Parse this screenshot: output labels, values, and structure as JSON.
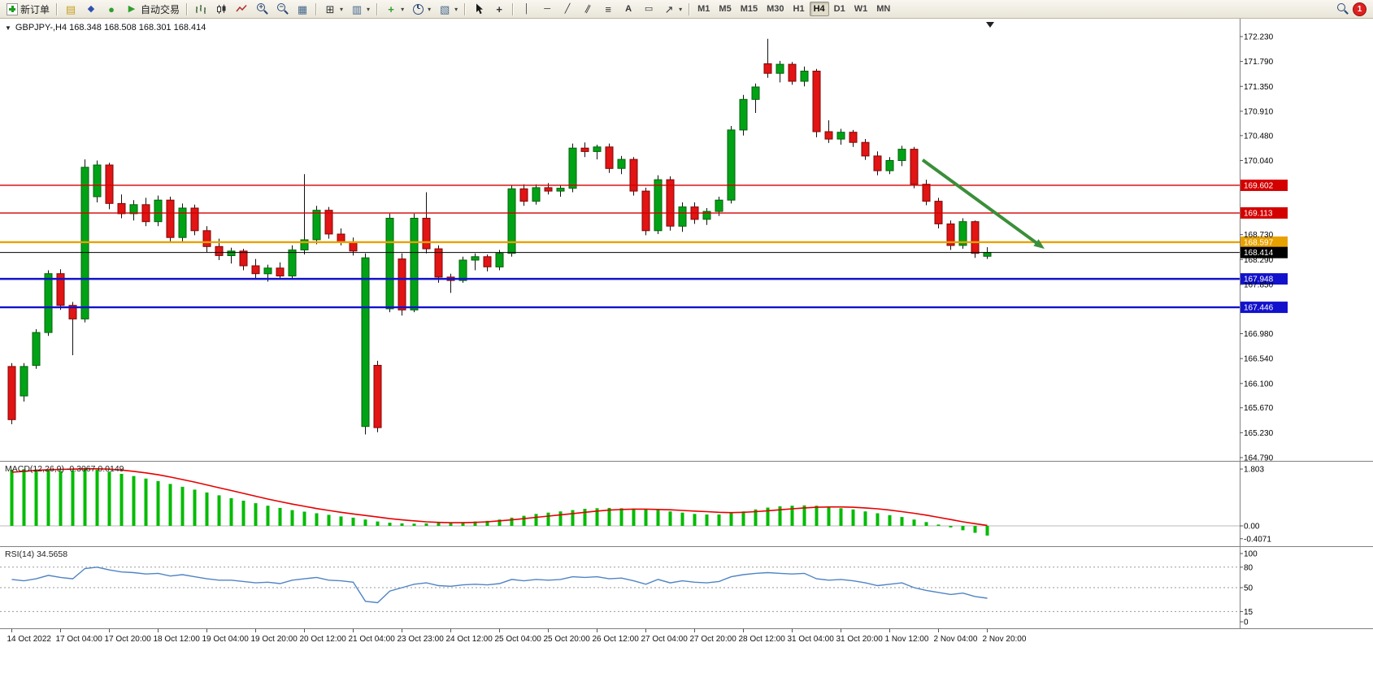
{
  "toolbar": {
    "new_order": "新订单",
    "autotrading": "自动交易",
    "timeframes": [
      "M1",
      "M5",
      "M15",
      "M30",
      "H1",
      "H4",
      "D1",
      "W1",
      "MN"
    ],
    "active_timeframe": "H4",
    "notification_count": "1"
  },
  "icons": {
    "collapse": "▼",
    "dropdown": "▾",
    "depth_of_market": "▤",
    "metaeditor": "◆",
    "mql5": "●",
    "play": "▶",
    "tile_windows": "▦",
    "new_chart": "⊞",
    "profiles": "▥",
    "templates": "▧",
    "indicators_plus": "+",
    "zoom_plus": "+",
    "zoom_minus": "−",
    "crosshair": "+",
    "vertical_line": "│",
    "horizontal_line": "─",
    "trend_line": "╱",
    "channel": "∥",
    "fibonacci": "≡",
    "text_tool": "A",
    "text_label": "▭",
    "arrows_tool": "↗"
  },
  "chart": {
    "title_line": "GBPJPY-,H4  168.348 168.508 168.301 168.414",
    "macd_header": "MACD(12,26,9) -0.3067 0.0149",
    "rsi_header": "RSI(14) 34.5658",
    "price_axis_labels": [
      "172.230",
      "171.790",
      "171.350",
      "170.910",
      "170.480",
      "170.040",
      "168.730",
      "168.290",
      "167.850",
      "166.980",
      "166.540",
      "166.100",
      "165.670",
      "165.230",
      "164.790"
    ],
    "macd_axis_labels": [
      "1.803",
      "0.00",
      "-0.4071"
    ],
    "rsi_axis_labels": [
      "100",
      "80",
      "50",
      "15",
      "0"
    ]
  },
  "chart_data": {
    "type": "candlestick",
    "symbol": "GBPJPY-",
    "timeframe": "H4",
    "ohlc_current": [
      168.348,
      168.508,
      168.301,
      168.414
    ],
    "y_range": [
      164.79,
      172.23
    ],
    "time_label_step": 4,
    "time_labels": [
      "14 Oct 2022",
      "17 Oct 04:00",
      "17 Oct 20:00",
      "18 Oct 12:00",
      "19 Oct 04:00",
      "19 Oct 20:00",
      "20 Oct 12:00",
      "21 Oct 04:00",
      "23 Oct 23:00",
      "24 Oct 12:00",
      "25 Oct 04:00",
      "25 Oct 20:00",
      "26 Oct 12:00",
      "27 Oct 04:00",
      "27 Oct 20:00",
      "28 Oct 12:00",
      "31 Oct 04:00",
      "31 Oct 20:00",
      "1 Nov 12:00",
      "2 Nov 04:00",
      "2 Nov 20:00"
    ],
    "candles": [
      [
        166.4,
        166.46,
        165.38,
        165.46
      ],
      [
        165.88,
        166.46,
        165.78,
        166.4
      ],
      [
        166.42,
        167.06,
        166.36,
        167.0
      ],
      [
        167.0,
        168.1,
        166.94,
        168.04
      ],
      [
        168.04,
        168.12,
        167.4,
        167.48
      ],
      [
        167.48,
        167.54,
        166.6,
        167.24
      ],
      [
        167.24,
        170.06,
        167.18,
        169.92
      ],
      [
        169.4,
        170.04,
        169.3,
        169.96
      ],
      [
        169.96,
        170.0,
        169.18,
        169.28
      ],
      [
        169.28,
        169.44,
        169.02,
        169.1
      ],
      [
        169.1,
        169.34,
        168.98,
        169.26
      ],
      [
        169.26,
        169.38,
        168.88,
        168.96
      ],
      [
        168.96,
        169.42,
        168.88,
        169.34
      ],
      [
        169.34,
        169.4,
        168.6,
        168.68
      ],
      [
        168.68,
        169.28,
        168.6,
        169.2
      ],
      [
        169.2,
        169.26,
        168.72,
        168.8
      ],
      [
        168.8,
        168.88,
        168.42,
        168.52
      ],
      [
        168.52,
        168.66,
        168.28,
        168.36
      ],
      [
        168.36,
        168.5,
        168.22,
        168.44
      ],
      [
        168.44,
        168.48,
        168.1,
        168.18
      ],
      [
        168.18,
        168.3,
        167.94,
        168.04
      ],
      [
        168.04,
        168.2,
        167.9,
        168.14
      ],
      [
        168.14,
        168.24,
        167.94,
        168.0
      ],
      [
        168.0,
        168.54,
        167.96,
        168.46
      ],
      [
        168.46,
        169.8,
        168.38,
        168.64
      ],
      [
        168.64,
        169.24,
        168.56,
        169.16
      ],
      [
        169.16,
        169.22,
        168.66,
        168.74
      ],
      [
        168.74,
        168.84,
        168.54,
        168.6
      ],
      [
        168.6,
        168.68,
        168.36,
        168.44
      ],
      [
        165.34,
        168.4,
        165.2,
        168.32
      ],
      [
        166.42,
        166.5,
        165.24,
        165.32
      ],
      [
        167.42,
        169.1,
        167.36,
        169.02
      ],
      [
        168.3,
        168.4,
        167.3,
        167.4
      ],
      [
        167.4,
        169.1,
        167.36,
        169.02
      ],
      [
        169.02,
        169.48,
        168.4,
        168.48
      ],
      [
        168.48,
        168.54,
        167.88,
        167.98
      ],
      [
        167.98,
        168.04,
        167.7,
        167.92
      ],
      [
        167.92,
        168.34,
        167.88,
        168.28
      ],
      [
        168.28,
        168.4,
        168.1,
        168.34
      ],
      [
        168.34,
        168.38,
        168.08,
        168.16
      ],
      [
        168.16,
        168.46,
        168.1,
        168.4
      ],
      [
        168.4,
        169.6,
        168.34,
        169.54
      ],
      [
        169.54,
        169.62,
        169.24,
        169.32
      ],
      [
        169.32,
        169.62,
        169.26,
        169.56
      ],
      [
        169.56,
        169.64,
        169.44,
        169.5
      ],
      [
        169.5,
        169.6,
        169.4,
        169.55
      ],
      [
        169.55,
        170.34,
        169.48,
        170.26
      ],
      [
        170.26,
        170.36,
        170.1,
        170.2
      ],
      [
        170.2,
        170.32,
        170.06,
        170.28
      ],
      [
        170.28,
        170.34,
        169.82,
        169.9
      ],
      [
        169.9,
        170.12,
        169.8,
        170.06
      ],
      [
        170.06,
        170.1,
        169.42,
        169.5
      ],
      [
        169.5,
        169.56,
        168.72,
        168.8
      ],
      [
        168.8,
        169.78,
        168.74,
        169.7
      ],
      [
        169.7,
        169.76,
        168.8,
        168.88
      ],
      [
        168.88,
        169.3,
        168.78,
        169.22
      ],
      [
        169.22,
        169.3,
        168.92,
        169.0
      ],
      [
        169.0,
        169.2,
        168.9,
        169.14
      ],
      [
        169.14,
        169.4,
        169.06,
        169.34
      ],
      [
        169.34,
        170.65,
        169.28,
        170.58
      ],
      [
        170.58,
        171.2,
        170.48,
        171.12
      ],
      [
        171.12,
        171.4,
        170.88,
        171.34
      ],
      [
        171.75,
        172.19,
        171.5,
        171.58
      ],
      [
        171.58,
        171.8,
        171.42,
        171.74
      ],
      [
        171.74,
        171.78,
        171.38,
        171.44
      ],
      [
        171.44,
        171.7,
        171.35,
        171.62
      ],
      [
        171.62,
        171.66,
        170.45,
        170.55
      ],
      [
        170.55,
        170.75,
        170.35,
        170.42
      ],
      [
        170.42,
        170.6,
        170.32,
        170.54
      ],
      [
        170.54,
        170.58,
        170.28,
        170.36
      ],
      [
        170.36,
        170.42,
        170.05,
        170.12
      ],
      [
        170.12,
        170.2,
        169.78,
        169.86
      ],
      [
        169.86,
        170.1,
        169.8,
        170.04
      ],
      [
        170.04,
        170.3,
        169.94,
        170.24
      ],
      [
        170.24,
        170.28,
        169.55,
        169.62
      ],
      [
        169.62,
        169.7,
        169.25,
        169.32
      ],
      [
        169.32,
        169.38,
        168.84,
        168.92
      ],
      [
        168.92,
        168.98,
        168.46,
        168.54
      ],
      [
        168.54,
        169.02,
        168.48,
        168.96
      ],
      [
        168.96,
        168.98,
        168.32,
        168.4
      ],
      [
        168.348,
        168.508,
        168.301,
        168.414
      ]
    ],
    "hlines": [
      {
        "price": 169.602,
        "color": "#d40000",
        "width": 1.4,
        "label": "169.602"
      },
      {
        "price": 169.113,
        "color": "#d40000",
        "width": 1.4,
        "label": "169.113"
      },
      {
        "price": 168.597,
        "color": "#e8a200",
        "width": 2.4,
        "label": "168.597"
      },
      {
        "price": 168.414,
        "color": "#000000",
        "width": 1,
        "label": "168.414"
      },
      {
        "price": 167.948,
        "color": "#1212cc",
        "width": 2.4,
        "label": "167.948"
      },
      {
        "price": 167.446,
        "color": "#1212cc",
        "width": 2.4,
        "label": "167.446"
      }
    ],
    "trend_arrow": {
      "from_index": 75,
      "from_price": 170.05,
      "to_index": 85,
      "to_price": 168.48,
      "color": "#3a8f3a"
    },
    "indicators": [
      {
        "name": "MACD",
        "params": "12,26,9",
        "value_main": -0.3067,
        "value_signal": 0.0149,
        "histogram": [
          1.78,
          1.8,
          1.79,
          1.76,
          1.74,
          1.76,
          1.8,
          1.78,
          1.72,
          1.65,
          1.58,
          1.5,
          1.42,
          1.33,
          1.24,
          1.15,
          1.06,
          0.97,
          0.88,
          0.8,
          0.72,
          0.64,
          0.57,
          0.5,
          0.45,
          0.4,
          0.35,
          0.3,
          0.26,
          0.2,
          0.14,
          0.1,
          0.08,
          0.07,
          0.08,
          0.09,
          0.1,
          0.12,
          0.14,
          0.16,
          0.2,
          0.26,
          0.32,
          0.38,
          0.42,
          0.46,
          0.5,
          0.54,
          0.56,
          0.57,
          0.56,
          0.55,
          0.52,
          0.5,
          0.46,
          0.42,
          0.38,
          0.36,
          0.36,
          0.4,
          0.46,
          0.52,
          0.58,
          0.62,
          0.64,
          0.65,
          0.64,
          0.6,
          0.56,
          0.52,
          0.46,
          0.4,
          0.34,
          0.28,
          0.2,
          0.12,
          0.04,
          -0.05,
          -0.14,
          -0.22,
          -0.3067
        ],
        "signal": [
          1.7,
          1.73,
          1.76,
          1.78,
          1.79,
          1.8,
          1.81,
          1.81,
          1.8,
          1.77,
          1.73,
          1.68,
          1.62,
          1.55,
          1.47,
          1.39,
          1.3,
          1.21,
          1.12,
          1.03,
          0.94,
          0.85,
          0.77,
          0.69,
          0.62,
          0.55,
          0.49,
          0.43,
          0.38,
          0.33,
          0.28,
          0.23,
          0.19,
          0.16,
          0.13,
          0.11,
          0.1,
          0.1,
          0.11,
          0.13,
          0.16,
          0.19,
          0.23,
          0.27,
          0.31,
          0.35,
          0.39,
          0.43,
          0.47,
          0.5,
          0.52,
          0.53,
          0.53,
          0.52,
          0.51,
          0.49,
          0.47,
          0.45,
          0.43,
          0.42,
          0.43,
          0.45,
          0.48,
          0.51,
          0.54,
          0.57,
          0.59,
          0.6,
          0.6,
          0.59,
          0.57,
          0.54,
          0.5,
          0.45,
          0.4,
          0.34,
          0.27,
          0.2,
          0.13,
          0.07,
          0.0149
        ],
        "range": [
          -0.4071,
          1.803
        ]
      },
      {
        "name": "RSI",
        "params": "14",
        "value": 34.5658,
        "series": [
          62,
          60,
          63,
          68,
          65,
          63,
          78,
          80,
          76,
          73,
          72,
          70,
          71,
          67,
          69,
          66,
          63,
          61,
          61,
          59,
          57,
          58,
          56,
          61,
          63,
          65,
          61,
          60,
          58,
          30,
          28,
          45,
          50,
          55,
          57,
          53,
          52,
          54,
          55,
          54,
          56,
          62,
          60,
          62,
          61,
          62,
          66,
          65,
          66,
          63,
          64,
          60,
          55,
          62,
          57,
          60,
          58,
          57,
          59,
          66,
          69,
          71,
          72,
          71,
          70,
          71,
          63,
          61,
          62,
          60,
          57,
          53,
          55,
          57,
          50,
          46,
          43,
          40,
          42,
          37,
          34.57
        ],
        "levels": [
          80,
          50,
          15
        ],
        "range": [
          0,
          100
        ]
      }
    ]
  }
}
